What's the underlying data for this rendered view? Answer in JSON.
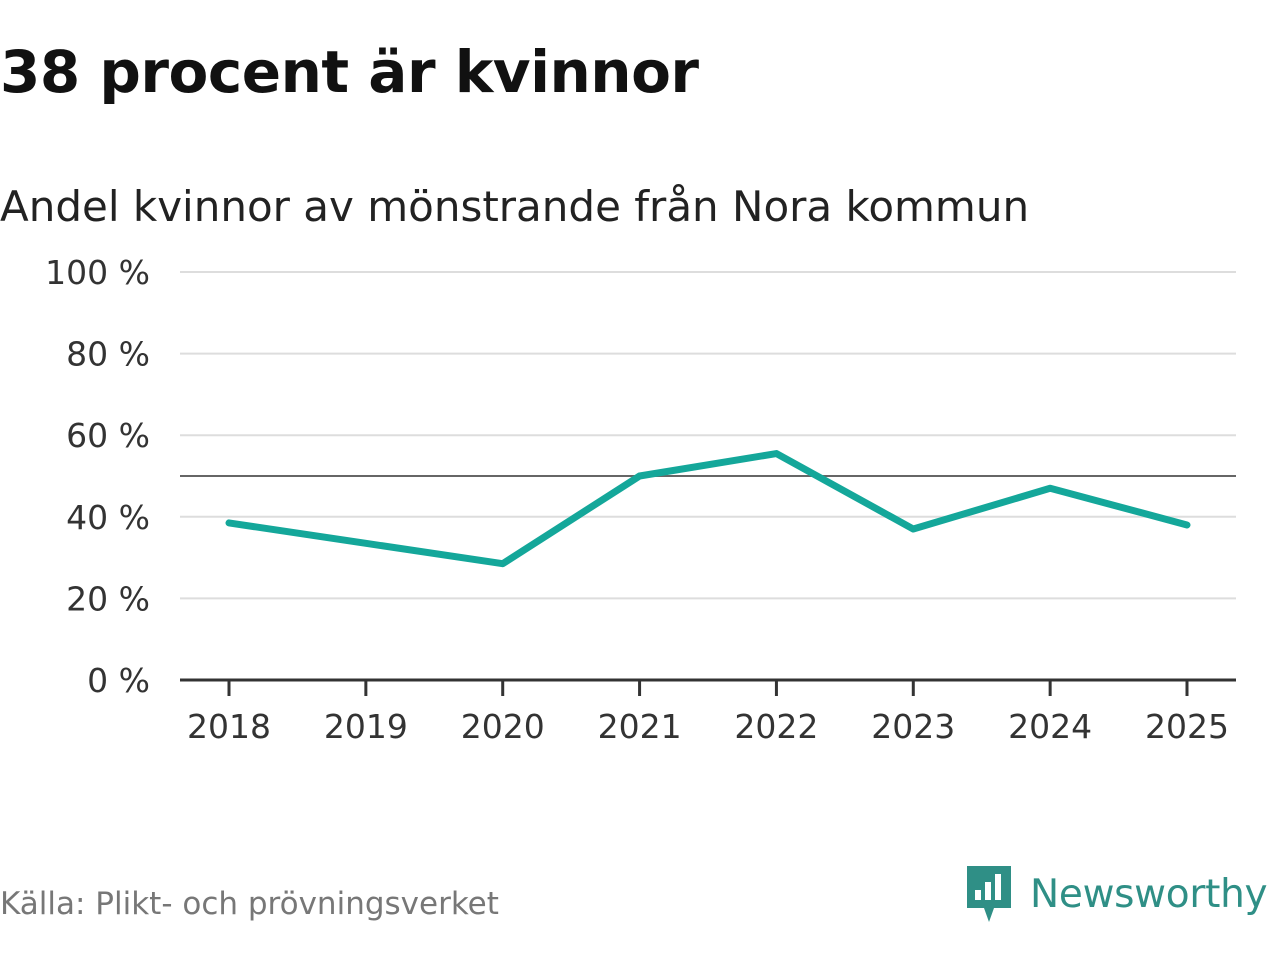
{
  "header": {
    "title": "38 procent är kvinnor",
    "subtitle": "Andel kvinnor av mönstrande från Nora kommun"
  },
  "footer": {
    "source": "Källa: Plikt- och prövningsverket",
    "brand": "Newsworthy",
    "brand_icon": "newsworthy-logo-icon"
  },
  "colors": {
    "line": "#14a79a",
    "reference": "#666666",
    "grid": "#dddddd",
    "axis": "#333333",
    "brand": "#2f8f86"
  },
  "chart_data": {
    "type": "line",
    "title": "Andel kvinnor av mönstrande från Nora kommun",
    "xlabel": "",
    "ylabel": "",
    "x": [
      "2018",
      "2019",
      "2020",
      "2021",
      "2022",
      "2023",
      "2024",
      "2025"
    ],
    "series": [
      {
        "values": [
          38.5,
          33.5,
          28.5,
          50.0,
          55.5,
          37.0,
          47.0,
          38.0
        ]
      }
    ],
    "ylim": [
      0,
      100
    ],
    "yticks": [
      0,
      20,
      40,
      60,
      80,
      100
    ],
    "ytick_labels": [
      "0 %",
      "20 %",
      "40 %",
      "60 %",
      "80 %",
      "100 %"
    ],
    "reference_line": 50,
    "grid": true,
    "legend": "none"
  }
}
